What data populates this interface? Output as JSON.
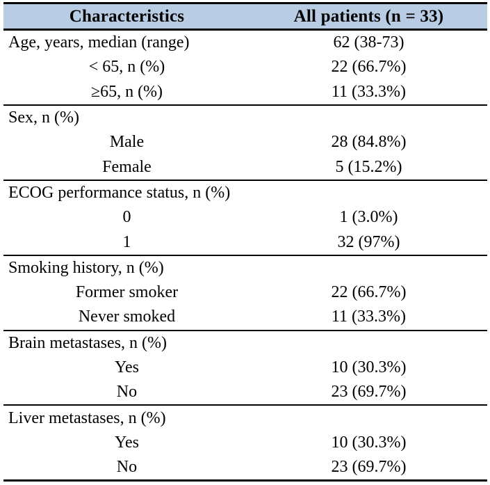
{
  "table": {
    "colors": {
      "header_bg": "#b8cce4",
      "border": "#000000",
      "text": "#000000",
      "background": "#ffffff"
    },
    "header": {
      "col1": "Characteristics",
      "col2": "All patients (n = 33)"
    },
    "sections": [
      {
        "rows": [
          {
            "label": "Age, years, median (range)",
            "value": "62 (38-73)",
            "align": "left"
          },
          {
            "label": "< 65, n (%)",
            "value": "22 (66.7%)",
            "align": "center"
          },
          {
            "label": "≥65, n (%)",
            "value": "11 (33.3%)",
            "align": "center"
          }
        ]
      },
      {
        "rows": [
          {
            "label": "Sex, n (%)",
            "value": "",
            "align": "left"
          },
          {
            "label": "Male",
            "value": "28 (84.8%)",
            "align": "center"
          },
          {
            "label": "Female",
            "value": "5 (15.2%)",
            "align": "center"
          }
        ]
      },
      {
        "rows": [
          {
            "label": "ECOG performance status, n (%)",
            "value": "",
            "align": "left"
          },
          {
            "label": "0",
            "value": "1 (3.0%)",
            "align": "center"
          },
          {
            "label": "1",
            "value": "32 (97%)",
            "align": "center"
          }
        ]
      },
      {
        "rows": [
          {
            "label": "Smoking history, n (%)",
            "value": "",
            "align": "left"
          },
          {
            "label": "Former smoker",
            "value": "22 (66.7%)",
            "align": "center"
          },
          {
            "label": "Never smoked",
            "value": "11 (33.3%)",
            "align": "center"
          }
        ]
      },
      {
        "rows": [
          {
            "label": "Brain metastases, n (%)",
            "value": "",
            "align": "left"
          },
          {
            "label": "Yes",
            "value": "10 (30.3%)",
            "align": "center"
          },
          {
            "label": "No",
            "value": "23 (69.7%)",
            "align": "center"
          }
        ]
      },
      {
        "rows": [
          {
            "label": "Liver metastases, n (%)",
            "value": "",
            "align": "left"
          },
          {
            "label": "Yes",
            "value": "10 (30.3%)",
            "align": "center"
          },
          {
            "label": "No",
            "value": "23 (69.7%)",
            "align": "center"
          }
        ]
      }
    ]
  }
}
